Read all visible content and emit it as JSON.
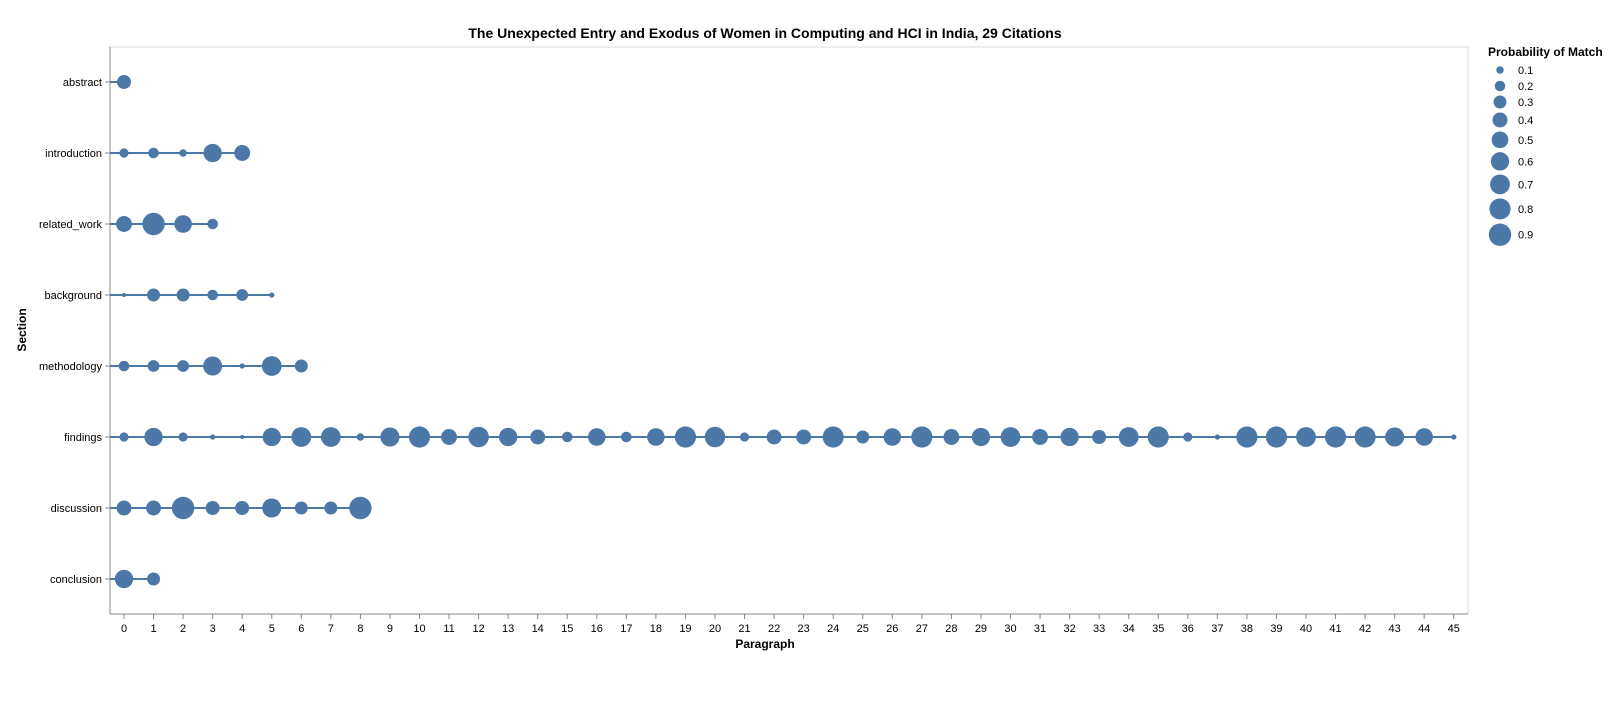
{
  "chart_data": {
    "type": "scatter",
    "title": "The Unexpected Entry and Exodus of Women in Computing and HCI in India, 29 Citations",
    "xlabel": "Paragraph",
    "ylabel": "Section",
    "x_ticks": [
      0,
      1,
      2,
      3,
      4,
      5,
      6,
      7,
      8,
      9,
      10,
      11,
      12,
      13,
      14,
      15,
      16,
      17,
      18,
      19,
      20,
      21,
      22,
      23,
      24,
      25,
      26,
      27,
      28,
      29,
      30,
      31,
      32,
      33,
      34,
      35,
      36,
      37,
      38,
      39,
      40,
      41,
      42,
      43,
      44,
      45
    ],
    "sections": [
      "abstract",
      "introduction",
      "related_work",
      "background",
      "methodology",
      "findings",
      "discussion",
      "conclusion"
    ],
    "grid": false,
    "mark_color": "#4c78a8",
    "legend": {
      "title": "Probability of Match",
      "position": "top-right",
      "values": [
        0.1,
        0.2,
        0.3,
        0.4,
        0.5,
        0.6,
        0.7,
        0.8,
        0.9
      ],
      "labels": [
        "0.1",
        "0.2",
        "0.3",
        "0.4",
        "0.5",
        "0.6",
        "0.7",
        "0.8",
        "0.9"
      ]
    },
    "series": [
      {
        "section": "abstract",
        "points": [
          [
            0,
            0.35
          ]
        ]
      },
      {
        "section": "introduction",
        "points": [
          [
            0,
            0.15
          ],
          [
            1,
            0.2
          ],
          [
            2,
            0.1
          ],
          [
            3,
            0.6
          ],
          [
            4,
            0.45
          ]
        ]
      },
      {
        "section": "related_work",
        "points": [
          [
            0,
            0.45
          ],
          [
            1,
            0.9
          ],
          [
            2,
            0.55
          ],
          [
            3,
            0.2
          ]
        ]
      },
      {
        "section": "background",
        "points": [
          [
            0,
            0.03
          ],
          [
            1,
            0.3
          ],
          [
            2,
            0.3
          ],
          [
            3,
            0.2
          ],
          [
            4,
            0.25
          ],
          [
            5,
            0.05
          ]
        ]
      },
      {
        "section": "methodology",
        "points": [
          [
            0,
            0.2
          ],
          [
            1,
            0.25
          ],
          [
            2,
            0.25
          ],
          [
            3,
            0.65
          ],
          [
            4,
            0.05
          ],
          [
            5,
            0.7
          ],
          [
            6,
            0.3
          ]
        ]
      },
      {
        "section": "findings",
        "points": [
          [
            0,
            0.15
          ],
          [
            1,
            0.6
          ],
          [
            2,
            0.15
          ],
          [
            3,
            0.05
          ],
          [
            4,
            0.03
          ],
          [
            5,
            0.6
          ],
          [
            6,
            0.7
          ],
          [
            7,
            0.7
          ],
          [
            8,
            0.1
          ],
          [
            9,
            0.65
          ],
          [
            10,
            0.8
          ],
          [
            11,
            0.45
          ],
          [
            12,
            0.75
          ],
          [
            13,
            0.6
          ],
          [
            14,
            0.4
          ],
          [
            15,
            0.2
          ],
          [
            16,
            0.55
          ],
          [
            17,
            0.2
          ],
          [
            18,
            0.55
          ],
          [
            19,
            0.8
          ],
          [
            20,
            0.75
          ],
          [
            21,
            0.15
          ],
          [
            22,
            0.4
          ],
          [
            23,
            0.4
          ],
          [
            24,
            0.8
          ],
          [
            25,
            0.3
          ],
          [
            26,
            0.55
          ],
          [
            27,
            0.8
          ],
          [
            28,
            0.45
          ],
          [
            29,
            0.6
          ],
          [
            30,
            0.7
          ],
          [
            31,
            0.45
          ],
          [
            32,
            0.6
          ],
          [
            33,
            0.35
          ],
          [
            34,
            0.7
          ],
          [
            35,
            0.8
          ],
          [
            36,
            0.15
          ],
          [
            37,
            0.05
          ],
          [
            38,
            0.8
          ],
          [
            39,
            0.8
          ],
          [
            40,
            0.7
          ],
          [
            41,
            0.8
          ],
          [
            42,
            0.8
          ],
          [
            43,
            0.65
          ],
          [
            44,
            0.55
          ],
          [
            45,
            0.05
          ]
        ]
      },
      {
        "section": "discussion",
        "points": [
          [
            0,
            0.4
          ],
          [
            1,
            0.4
          ],
          [
            2,
            0.9
          ],
          [
            3,
            0.35
          ],
          [
            4,
            0.35
          ],
          [
            5,
            0.65
          ],
          [
            6,
            0.3
          ],
          [
            7,
            0.3
          ],
          [
            8,
            0.9
          ]
        ]
      },
      {
        "section": "conclusion",
        "points": [
          [
            0,
            0.6
          ],
          [
            1,
            0.3
          ]
        ]
      }
    ]
  }
}
